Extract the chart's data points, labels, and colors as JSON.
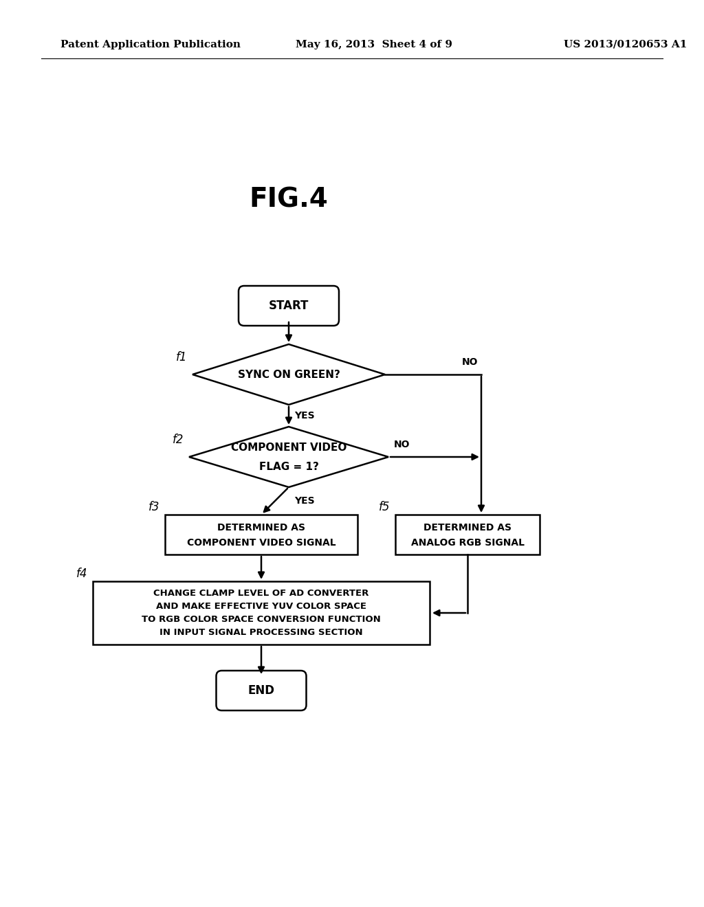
{
  "title": "FIG.4",
  "header_left": "Patent Application Publication",
  "header_center": "May 16, 2013  Sheet 4 of 9",
  "header_right": "US 2013/0120653 A1",
  "background_color": "#ffffff",
  "start_label": "START",
  "end_label": "END",
  "d1_label_line1": "SYNC ON GREEN?",
  "d1_tag": "f1",
  "d2_label_line1": "COMPONENT VIDEO",
  "d2_label_line2": "FLAG = 1?",
  "d2_tag": "f2",
  "b3_line1": "DETERMINED AS",
  "b3_line2": "COMPONENT VIDEO SIGNAL",
  "b3_tag": "f3",
  "b5_line1": "DETERMINED AS",
  "b5_line2": "ANALOG RGB SIGNAL",
  "b5_tag": "f5",
  "b4_line1": "CHANGE CLAMP LEVEL OF AD CONVERTER",
  "b4_line2": "AND MAKE EFFECTIVE YUV COLOR SPACE",
  "b4_line3": "TO RGB COLOR SPACE CONVERSION FUNCTION",
  "b4_line4": "IN INPUT SIGNAL PROCESSING SECTION",
  "b4_tag": "f4",
  "yes_label": "YES",
  "no_label": "NO"
}
